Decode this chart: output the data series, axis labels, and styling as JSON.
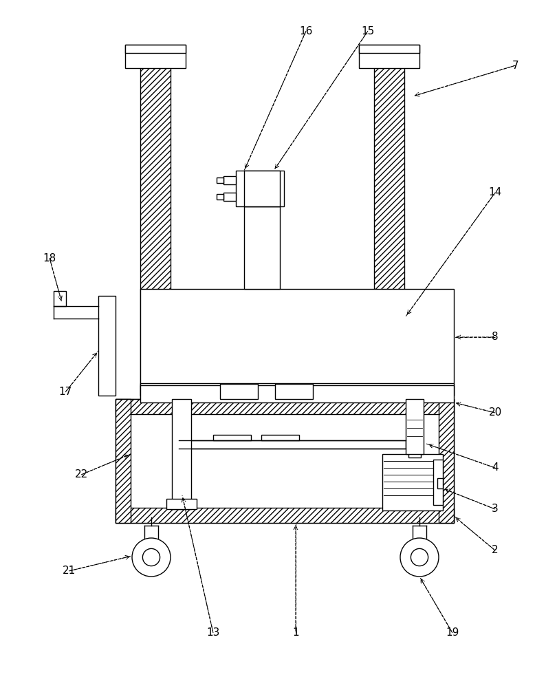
{
  "fig_width": 8.1,
  "fig_height": 10.0,
  "dpi": 100,
  "bg_color": "#ffffff",
  "lw": 1.0
}
